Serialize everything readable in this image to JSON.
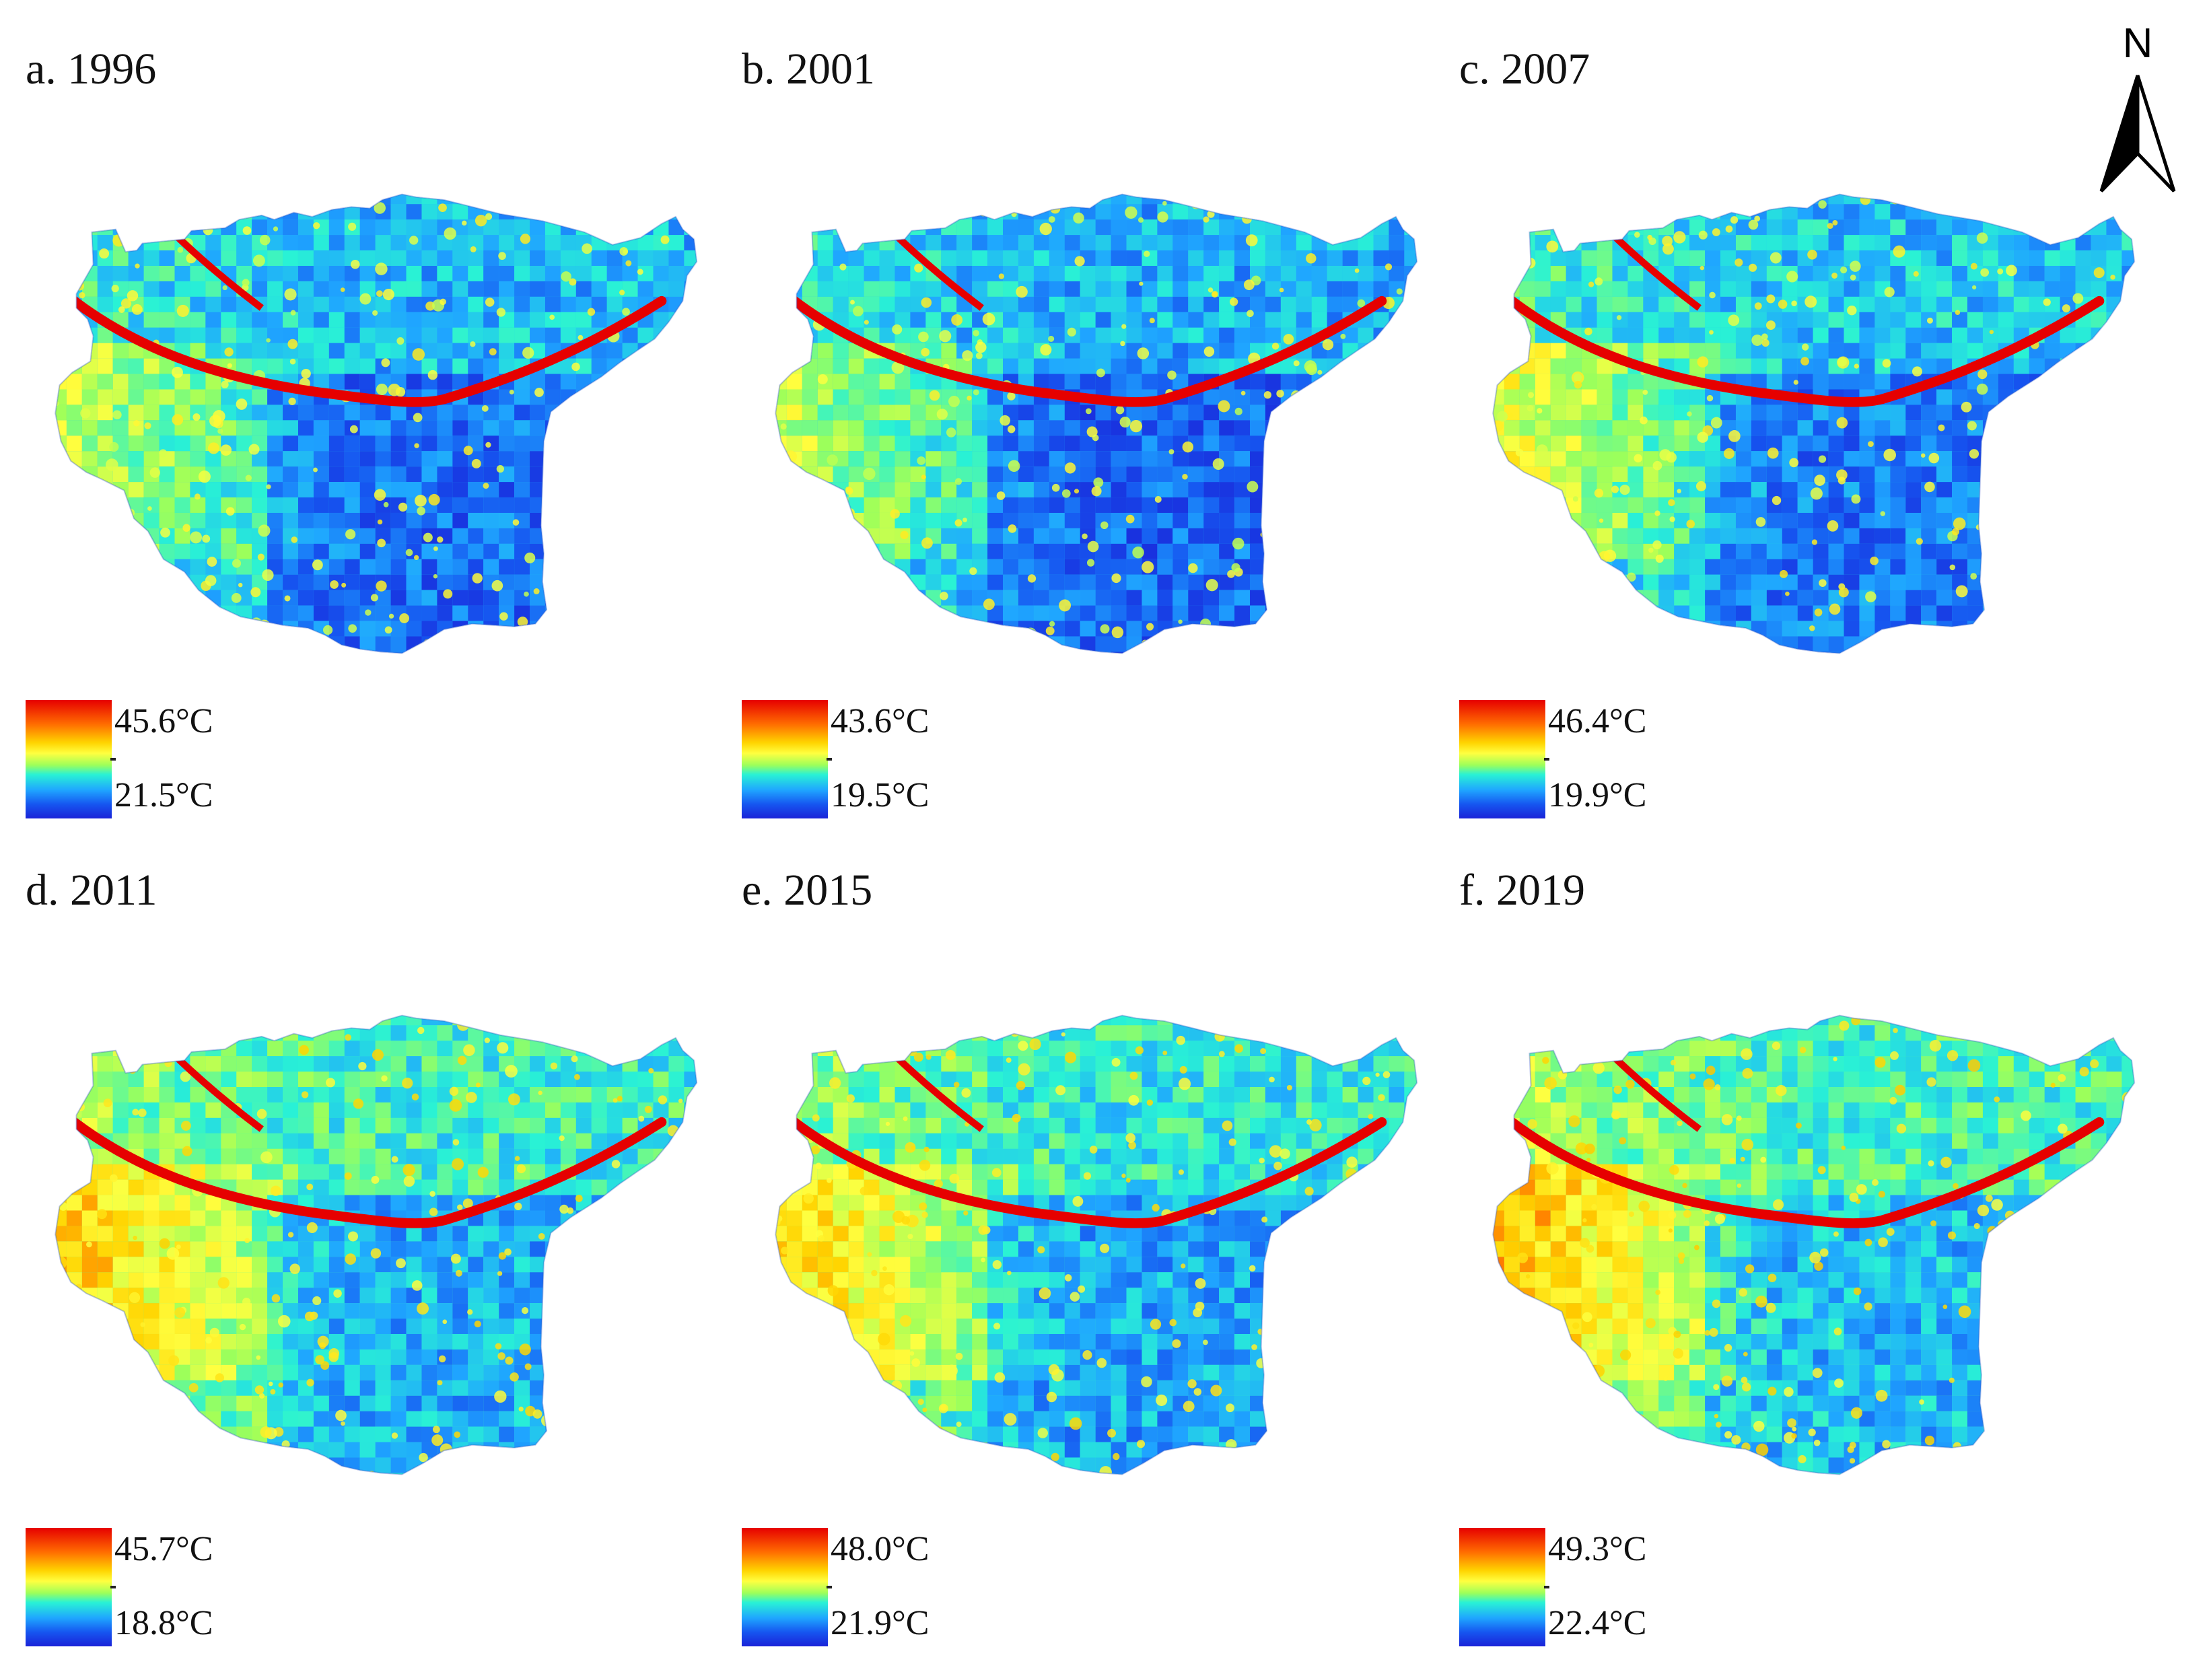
{
  "panels": [
    {
      "title": "a. 1996",
      "max": "45.6°C",
      "min": "21.5°C",
      "heat": 0.22
    },
    {
      "title": "b. 2001",
      "max": "43.6°C",
      "min": "19.5°C",
      "heat": 0.18
    },
    {
      "title": "c. 2007",
      "max": "46.4°C",
      "min": "19.9°C",
      "heat": 0.28
    },
    {
      "title": "d. 2011",
      "max": "45.7°C",
      "min": "18.8°C",
      "heat": 0.52
    },
    {
      "title": "e. 2015",
      "max": "48.0°C",
      "min": "21.9°C",
      "heat": 0.48
    },
    {
      "title": "f. 2019",
      "max": "49.3°C",
      "min": "22.4°C",
      "heat": 0.58
    }
  ],
  "north_arrow": {
    "label": "N",
    "icon": "north-arrow-icon"
  },
  "colors": {
    "hot": "#e60000",
    "warm": "#ffd400",
    "mid": "#29f2d5",
    "cool": "#1fa6ff",
    "cold": "#1a23d8"
  }
}
